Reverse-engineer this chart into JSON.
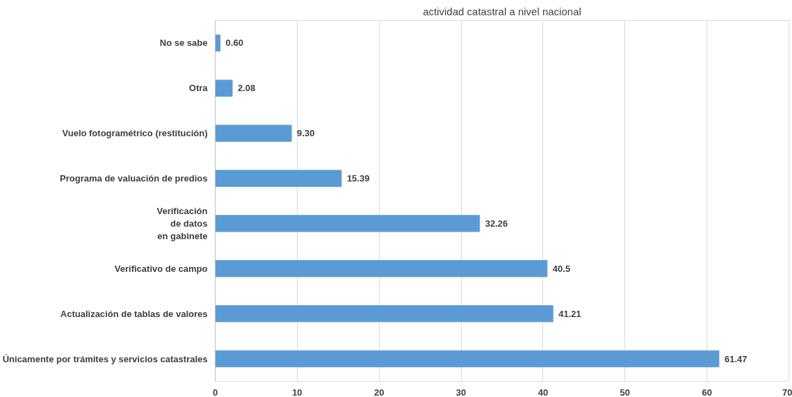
{
  "chart_data": {
    "type": "bar",
    "orientation": "horizontal",
    "title": "actividad catastral a nivel nacional",
    "categories": [
      "No se sabe",
      "Otra",
      "Vuelo fotogramétrico (restitución)",
      "Programa de valuación de predios",
      "Verificación\nde datos\nen gabinete",
      "Verificativo de campo",
      "Actualización de tablas de valores",
      "Únicamente por trámites y servicios catastrales"
    ],
    "values": [
      0.6,
      2.08,
      9.3,
      15.39,
      32.26,
      40.5,
      41.21,
      61.47
    ],
    "value_labels": [
      "0.60",
      "2.08",
      "9.30",
      "15.39",
      "32.26",
      "40.5",
      "41.21",
      "61.47"
    ],
    "color": "#5b9bd5",
    "xlim": [
      0,
      70
    ],
    "xticks": [
      0,
      10,
      20,
      30,
      40,
      50,
      60,
      70
    ],
    "grid": "x"
  }
}
